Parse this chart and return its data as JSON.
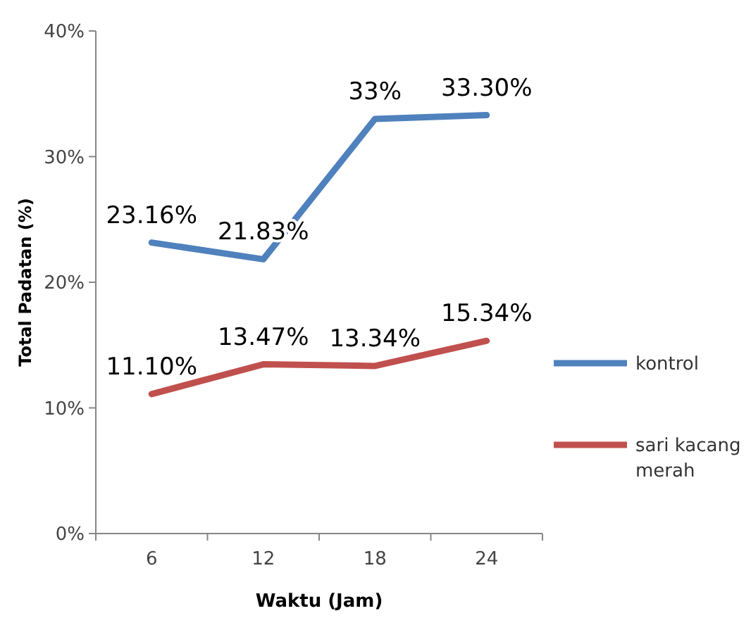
{
  "chart_data": {
    "type": "line",
    "xlabel": "Waktu (Jam)",
    "ylabel": "Total Padatan (%)",
    "categories": [
      "6",
      "12",
      "18",
      "24"
    ],
    "series": [
      {
        "name": "kontrol",
        "color": "#4f81bd",
        "values": [
          23.16,
          21.83,
          33,
          33.3
        ],
        "value_labels": [
          "23.16%",
          "21.83%",
          "33%",
          "33.30%"
        ]
      },
      {
        "name": "sari kacang merah",
        "color": "#c0504d",
        "values": [
          11.1,
          13.47,
          13.34,
          15.34
        ],
        "value_labels": [
          "11.10%",
          "13.47%",
          "13.34%",
          "15.34%"
        ]
      }
    ],
    "ylim": [
      0,
      40
    ],
    "yticks": [
      {
        "value": 0,
        "label": "0%"
      },
      {
        "value": 10,
        "label": "10%"
      },
      {
        "value": 20,
        "label": "20%"
      },
      {
        "value": 30,
        "label": "30%"
      },
      {
        "value": 40,
        "label": "40%"
      }
    ],
    "legend": "right",
    "marker": "none",
    "line_style": "solid",
    "grid": false
  }
}
